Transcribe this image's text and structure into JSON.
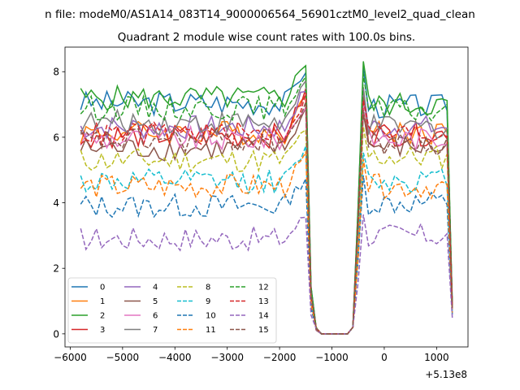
{
  "chart_data": {
    "type": "line",
    "suptitle": "n file: modeM0/AS1A14_083T14_9000006564_56901cztM0_level2_quad_clean",
    "title": "Quadrant 2 module wise count rates with 100.0s bins.",
    "xlabel": "",
    "ylabel": "",
    "x_offset_label": "+5.13e8",
    "xlim": [
      -6100,
      1600
    ],
    "ylim": [
      -0.4,
      8.75
    ],
    "xticks": [
      -6000,
      -5000,
      -4000,
      -3000,
      -2000,
      -1000,
      0,
      1000
    ],
    "xtick_labels": [
      "−6000",
      "−5000",
      "−4000",
      "−3000",
      "−2000",
      "−1000",
      "0",
      "1000"
    ],
    "yticks": [
      0,
      2,
      4,
      6,
      8
    ],
    "ytick_labels": [
      "0",
      "2",
      "4",
      "6",
      "8"
    ],
    "legend_loc": "lower-left",
    "legend_columns": 4,
    "grid": false,
    "x_segments": [
      {
        "start": -5800,
        "end": -1500,
        "step": 100
      },
      {
        "start": -1400,
        "end": -700,
        "step": 100
      },
      {
        "start": -600,
        "end": 1300,
        "step": 100
      }
    ],
    "series": [
      {
        "name": "0",
        "color": "#1f77b4",
        "dash": false,
        "level": 7.05,
        "post": 6.95,
        "peak": 8.1
      },
      {
        "name": "1",
        "color": "#ff7f0e",
        "dash": false,
        "level": 6.15,
        "post": 6.15,
        "peak": 7.2
      },
      {
        "name": "2",
        "color": "#2ca02c",
        "dash": false,
        "level": 7.2,
        "post": 7.0,
        "peak": 8.3
      },
      {
        "name": "3",
        "color": "#d62728",
        "dash": false,
        "level": 6.05,
        "post": 6.1,
        "peak": 7.4
      },
      {
        "name": "4",
        "color": "#9467bd",
        "dash": false,
        "level": 6.3,
        "post": 6.3,
        "peak": 7.5
      },
      {
        "name": "5",
        "color": "#8c564b",
        "dash": false,
        "level": 5.65,
        "post": 5.7,
        "peak": 6.8
      },
      {
        "name": "6",
        "color": "#e377c2",
        "dash": false,
        "level": 5.95,
        "post": 5.95,
        "peak": 7.0
      },
      {
        "name": "7",
        "color": "#7f7f7f",
        "dash": false,
        "level": 6.45,
        "post": 6.3,
        "peak": 7.6
      },
      {
        "name": "8",
        "color": "#bcbd22",
        "dash": true,
        "level": 5.3,
        "post": 5.4,
        "peak": 6.3
      },
      {
        "name": "9",
        "color": "#17becf",
        "dash": true,
        "level": 4.65,
        "post": 4.7,
        "peak": 5.6
      },
      {
        "name": "10",
        "color": "#1f77b4",
        "dash": true,
        "level": 3.9,
        "post": 4.0,
        "peak": 4.8
      },
      {
        "name": "11",
        "color": "#ff7f0e",
        "dash": true,
        "level": 4.5,
        "post": 4.5,
        "peak": 5.4
      },
      {
        "name": "12",
        "color": "#2ca02c",
        "dash": true,
        "level": 6.9,
        "post": 6.8,
        "peak": 7.9
      },
      {
        "name": "13",
        "color": "#d62728",
        "dash": true,
        "level": 6.1,
        "post": 6.1,
        "peak": 7.2
      },
      {
        "name": "14",
        "color": "#9467bd",
        "dash": true,
        "level": 2.9,
        "post": 3.0,
        "peak": 3.6
      },
      {
        "name": "15",
        "color": "#8c564b",
        "dash": true,
        "level": 5.9,
        "post": 5.8,
        "peak": 6.9
      }
    ]
  }
}
